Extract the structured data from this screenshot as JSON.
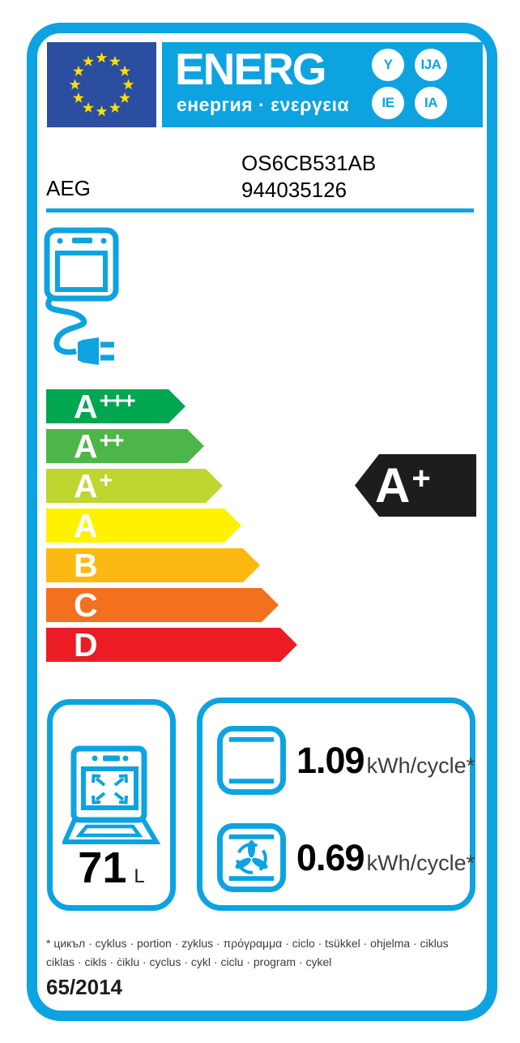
{
  "header": {
    "energy_word": "ENERG",
    "energy_suffixes": [
      "Y",
      "IJA",
      "IE",
      "IA"
    ],
    "energy_subtitle": "енергия · ενεργεια"
  },
  "product": {
    "brand": "AEG",
    "model": "OS6CB531AB",
    "number": "944035126"
  },
  "rating": {
    "selected": {
      "letter": "A",
      "plus": "+"
    },
    "scale": [
      {
        "letter": "A",
        "plus": "+++",
        "color": "#00A650"
      },
      {
        "letter": "A",
        "plus": "++",
        "color": "#4CB748"
      },
      {
        "letter": "A",
        "plus": "+",
        "color": "#BED62F"
      },
      {
        "letter": "A",
        "plus": "",
        "color": "#FEF200"
      },
      {
        "letter": "B",
        "plus": "",
        "color": "#FCB913"
      },
      {
        "letter": "C",
        "plus": "",
        "color": "#F3701E"
      },
      {
        "letter": "D",
        "plus": "",
        "color": "#EC1C24"
      }
    ]
  },
  "metrics": {
    "cavity_volume": {
      "value": "71",
      "unit": "L"
    },
    "conventional_energy": {
      "value": "1.09",
      "unit": "kWh/cycle*"
    },
    "fan_energy": {
      "value": "0.69",
      "unit": "kWh/cycle*"
    }
  },
  "footnote": {
    "line1": "* цикъл · cyklus · portion · zyklus · πρόγραμμα · ciclo · tsükkel · ohjelma · ciklus",
    "line2": "ciklas · cikls · ċiklu · cyclus · cykl · ciclu · program · cykel"
  },
  "regulation": "65/2014",
  "colors": {
    "accent_cyan": "#0DA3E0",
    "eu_flag_blue": "#2B4EA1",
    "star_yellow": "#FFDE00",
    "selected_arrow_black": "#1D1D1B"
  }
}
